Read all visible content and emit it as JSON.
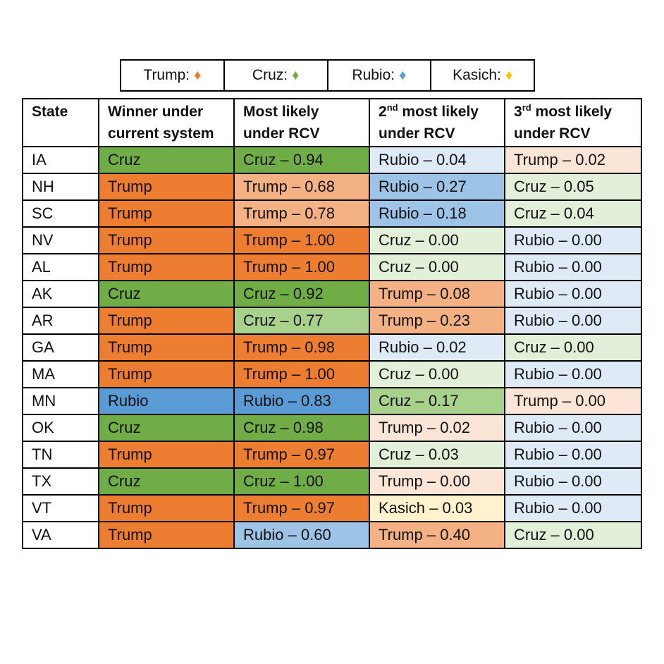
{
  "legend": [
    {
      "label": "Trump:",
      "color": "#ED7D31"
    },
    {
      "label": "Cruz:",
      "color": "#70AD47"
    },
    {
      "label": "Rubio:",
      "color": "#5B9BD5"
    },
    {
      "label": "Kasich:",
      "color": "#FFC000"
    }
  ],
  "colors": {
    "Trump": {
      "strong": "#ED7D31",
      "medium": "#F4B183",
      "light": "#FBE5D6"
    },
    "Cruz": {
      "strong": "#70AD47",
      "medium": "#A9D18E",
      "light": "#E2F0D9"
    },
    "Rubio": {
      "strong": "#5B9BD5",
      "medium": "#9DC3E6",
      "light": "#DEEBF7"
    },
    "Kasich": {
      "strong": "#FFC000",
      "medium": "#FFD966",
      "light": "#FFF2CC"
    }
  },
  "headers": {
    "state": "State",
    "winner": "Winner under current system",
    "first": "Most likely under RCV",
    "second_num": "2",
    "second_sup": "nd",
    "second_rest": " most likely under RCV",
    "third_num": "3",
    "third_sup": "rd",
    "third_rest": " most likely under RCV"
  },
  "chart_data": {
    "type": "table",
    "columns": [
      "State",
      "Winner under current system",
      "Most likely under RCV",
      "2nd most likely under RCV",
      "3rd most likely under RCV"
    ],
    "rows": [
      {
        "state": "IA",
        "winner": "Cruz",
        "first": {
          "candidate": "Cruz",
          "p": "0.94",
          "shade": "strong"
        },
        "second": {
          "candidate": "Rubio",
          "p": "0.04",
          "shade": "light"
        },
        "third": {
          "candidate": "Trump",
          "p": "0.02",
          "shade": "light"
        }
      },
      {
        "state": "NH",
        "winner": "Trump",
        "first": {
          "candidate": "Trump",
          "p": "0.68",
          "shade": "medium"
        },
        "second": {
          "candidate": "Rubio",
          "p": "0.27",
          "shade": "medium"
        },
        "third": {
          "candidate": "Cruz",
          "p": "0.05",
          "shade": "light"
        }
      },
      {
        "state": "SC",
        "winner": "Trump",
        "first": {
          "candidate": "Trump",
          "p": "0.78",
          "shade": "medium"
        },
        "second": {
          "candidate": "Rubio",
          "p": "0.18",
          "shade": "medium"
        },
        "third": {
          "candidate": "Cruz",
          "p": "0.04",
          "shade": "light"
        }
      },
      {
        "state": "NV",
        "winner": "Trump",
        "first": {
          "candidate": "Trump",
          "p": "1.00",
          "shade": "strong"
        },
        "second": {
          "candidate": "Cruz",
          "p": "0.00",
          "shade": "light"
        },
        "third": {
          "candidate": "Rubio",
          "p": "0.00",
          "shade": "light"
        }
      },
      {
        "state": "AL",
        "winner": "Trump",
        "first": {
          "candidate": "Trump",
          "p": "1.00",
          "shade": "strong"
        },
        "second": {
          "candidate": "Cruz",
          "p": "0.00",
          "shade": "light"
        },
        "third": {
          "candidate": "Rubio",
          "p": "0.00",
          "shade": "light"
        }
      },
      {
        "state": "AK",
        "winner": "Cruz",
        "first": {
          "candidate": "Cruz",
          "p": "0.92",
          "shade": "strong"
        },
        "second": {
          "candidate": "Trump",
          "p": "0.08",
          "shade": "medium"
        },
        "third": {
          "candidate": "Rubio",
          "p": "0.00",
          "shade": "light"
        }
      },
      {
        "state": "AR",
        "winner": "Trump",
        "first": {
          "candidate": "Cruz",
          "p": "0.77",
          "shade": "medium"
        },
        "second": {
          "candidate": "Trump",
          "p": "0.23",
          "shade": "medium"
        },
        "third": {
          "candidate": "Rubio",
          "p": "0.00",
          "shade": "light"
        }
      },
      {
        "state": "GA",
        "winner": "Trump",
        "first": {
          "candidate": "Trump",
          "p": "0.98",
          "shade": "strong"
        },
        "second": {
          "candidate": "Rubio",
          "p": "0.02",
          "shade": "light"
        },
        "third": {
          "candidate": "Cruz",
          "p": "0.00",
          "shade": "light"
        }
      },
      {
        "state": "MA",
        "winner": "Trump",
        "first": {
          "candidate": "Trump",
          "p": "1.00",
          "shade": "strong"
        },
        "second": {
          "candidate": "Cruz",
          "p": "0.00",
          "shade": "light"
        },
        "third": {
          "candidate": "Rubio",
          "p": "0.00",
          "shade": "light"
        }
      },
      {
        "state": "MN",
        "winner": "Rubio",
        "first": {
          "candidate": "Rubio",
          "p": "0.83",
          "shade": "strong"
        },
        "second": {
          "candidate": "Cruz",
          "p": "0.17",
          "shade": "medium"
        },
        "third": {
          "candidate": "Trump",
          "p": "0.00",
          "shade": "light"
        }
      },
      {
        "state": "OK",
        "winner": "Cruz",
        "first": {
          "candidate": "Cruz",
          "p": "0.98",
          "shade": "strong"
        },
        "second": {
          "candidate": "Trump",
          "p": "0.02",
          "shade": "light"
        },
        "third": {
          "candidate": "Rubio",
          "p": "0.00",
          "shade": "light"
        }
      },
      {
        "state": "TN",
        "winner": "Trump",
        "first": {
          "candidate": "Trump",
          "p": "0.97",
          "shade": "strong"
        },
        "second": {
          "candidate": "Cruz",
          "p": "0.03",
          "shade": "light"
        },
        "third": {
          "candidate": "Rubio",
          "p": "0.00",
          "shade": "light"
        }
      },
      {
        "state": "TX",
        "winner": "Cruz",
        "first": {
          "candidate": "Cruz",
          "p": "1.00",
          "shade": "strong"
        },
        "second": {
          "candidate": "Trump",
          "p": "0.00",
          "shade": "light"
        },
        "third": {
          "candidate": "Rubio",
          "p": "0.00",
          "shade": "light"
        }
      },
      {
        "state": "VT",
        "winner": "Trump",
        "first": {
          "candidate": "Trump",
          "p": "0.97",
          "shade": "strong"
        },
        "second": {
          "candidate": "Kasich",
          "p": "0.03",
          "shade": "light"
        },
        "third": {
          "candidate": "Rubio",
          "p": "0.00",
          "shade": "light"
        }
      },
      {
        "state": "VA",
        "winner": "Trump",
        "first": {
          "candidate": "Rubio",
          "p": "0.60",
          "shade": "medium"
        },
        "second": {
          "candidate": "Trump",
          "p": "0.40",
          "shade": "medium"
        },
        "third": {
          "candidate": "Cruz",
          "p": "0.00",
          "shade": "light"
        }
      }
    ]
  }
}
